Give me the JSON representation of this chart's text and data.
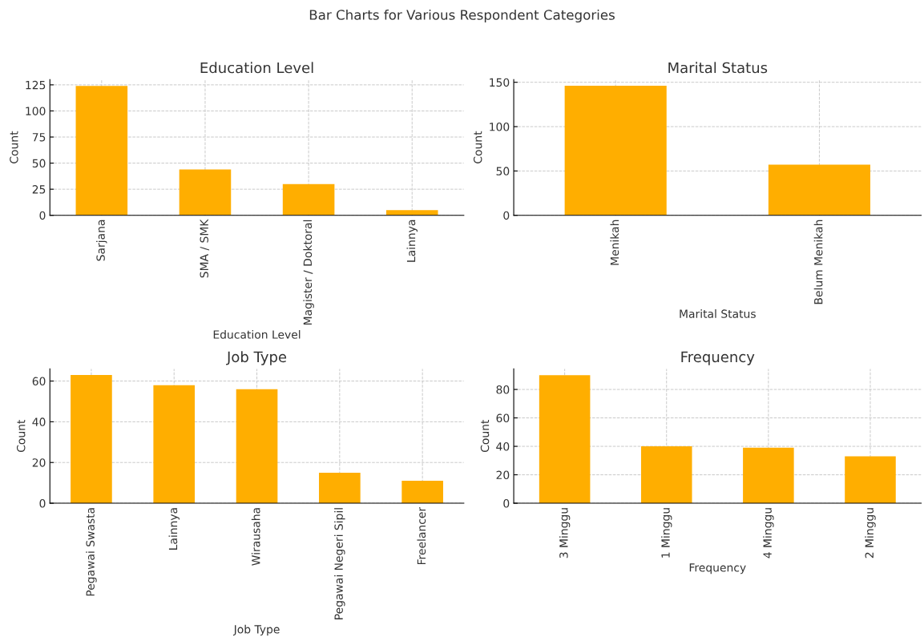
{
  "chart_data": [
    {
      "type": "bar",
      "title": "Education Level",
      "xlabel": "Education Level",
      "ylabel": "Count",
      "annotations": [
        "Bar Charts for Various Respondent Categories"
      ],
      "categories": [
        "Sarjana",
        "SMA / SMK",
        "Magister / Doktoral",
        "Lainnya"
      ],
      "values": [
        124,
        44,
        30,
        5
      ],
      "color": "#ffae00",
      "ylim": [
        0,
        130
      ],
      "yticks": [
        0,
        25,
        50,
        75,
        100,
        125
      ],
      "grid": true,
      "legend": false
    },
    {
      "type": "bar",
      "title": "Marital Status",
      "xlabel": "Marital Status",
      "ylabel": "Count",
      "categories": [
        "Menikah",
        "Belum Menikah"
      ],
      "values": [
        146,
        57
      ],
      "color": "#ffae00",
      "ylim": [
        0,
        153
      ],
      "yticks": [
        0,
        50,
        100,
        150
      ],
      "grid": true,
      "legend": false
    },
    {
      "type": "bar",
      "title": "Job Type",
      "xlabel": "Job Type",
      "ylabel": "Count",
      "categories": [
        "Pegawai Swasta",
        "Lainnya",
        "Wirausaha",
        "Pegawai Negeri Sipil",
        "Freelancer"
      ],
      "values": [
        63,
        58,
        56,
        15,
        11
      ],
      "color": "#ffae00",
      "ylim": [
        0,
        66
      ],
      "yticks": [
        0,
        20,
        40,
        60
      ],
      "grid": true,
      "legend": false
    },
    {
      "type": "bar",
      "title": "Frequency",
      "xlabel": "Frequency",
      "ylabel": "Count",
      "categories": [
        "3 Minggu",
        "1 Minggu",
        "4 Minggu",
        "2 Minggu"
      ],
      "values": [
        90,
        40,
        39,
        33
      ],
      "color": "#ffae00",
      "ylim": [
        0,
        94.5
      ],
      "yticks": [
        0,
        20,
        40,
        60,
        80
      ],
      "grid": true,
      "legend": false
    }
  ]
}
